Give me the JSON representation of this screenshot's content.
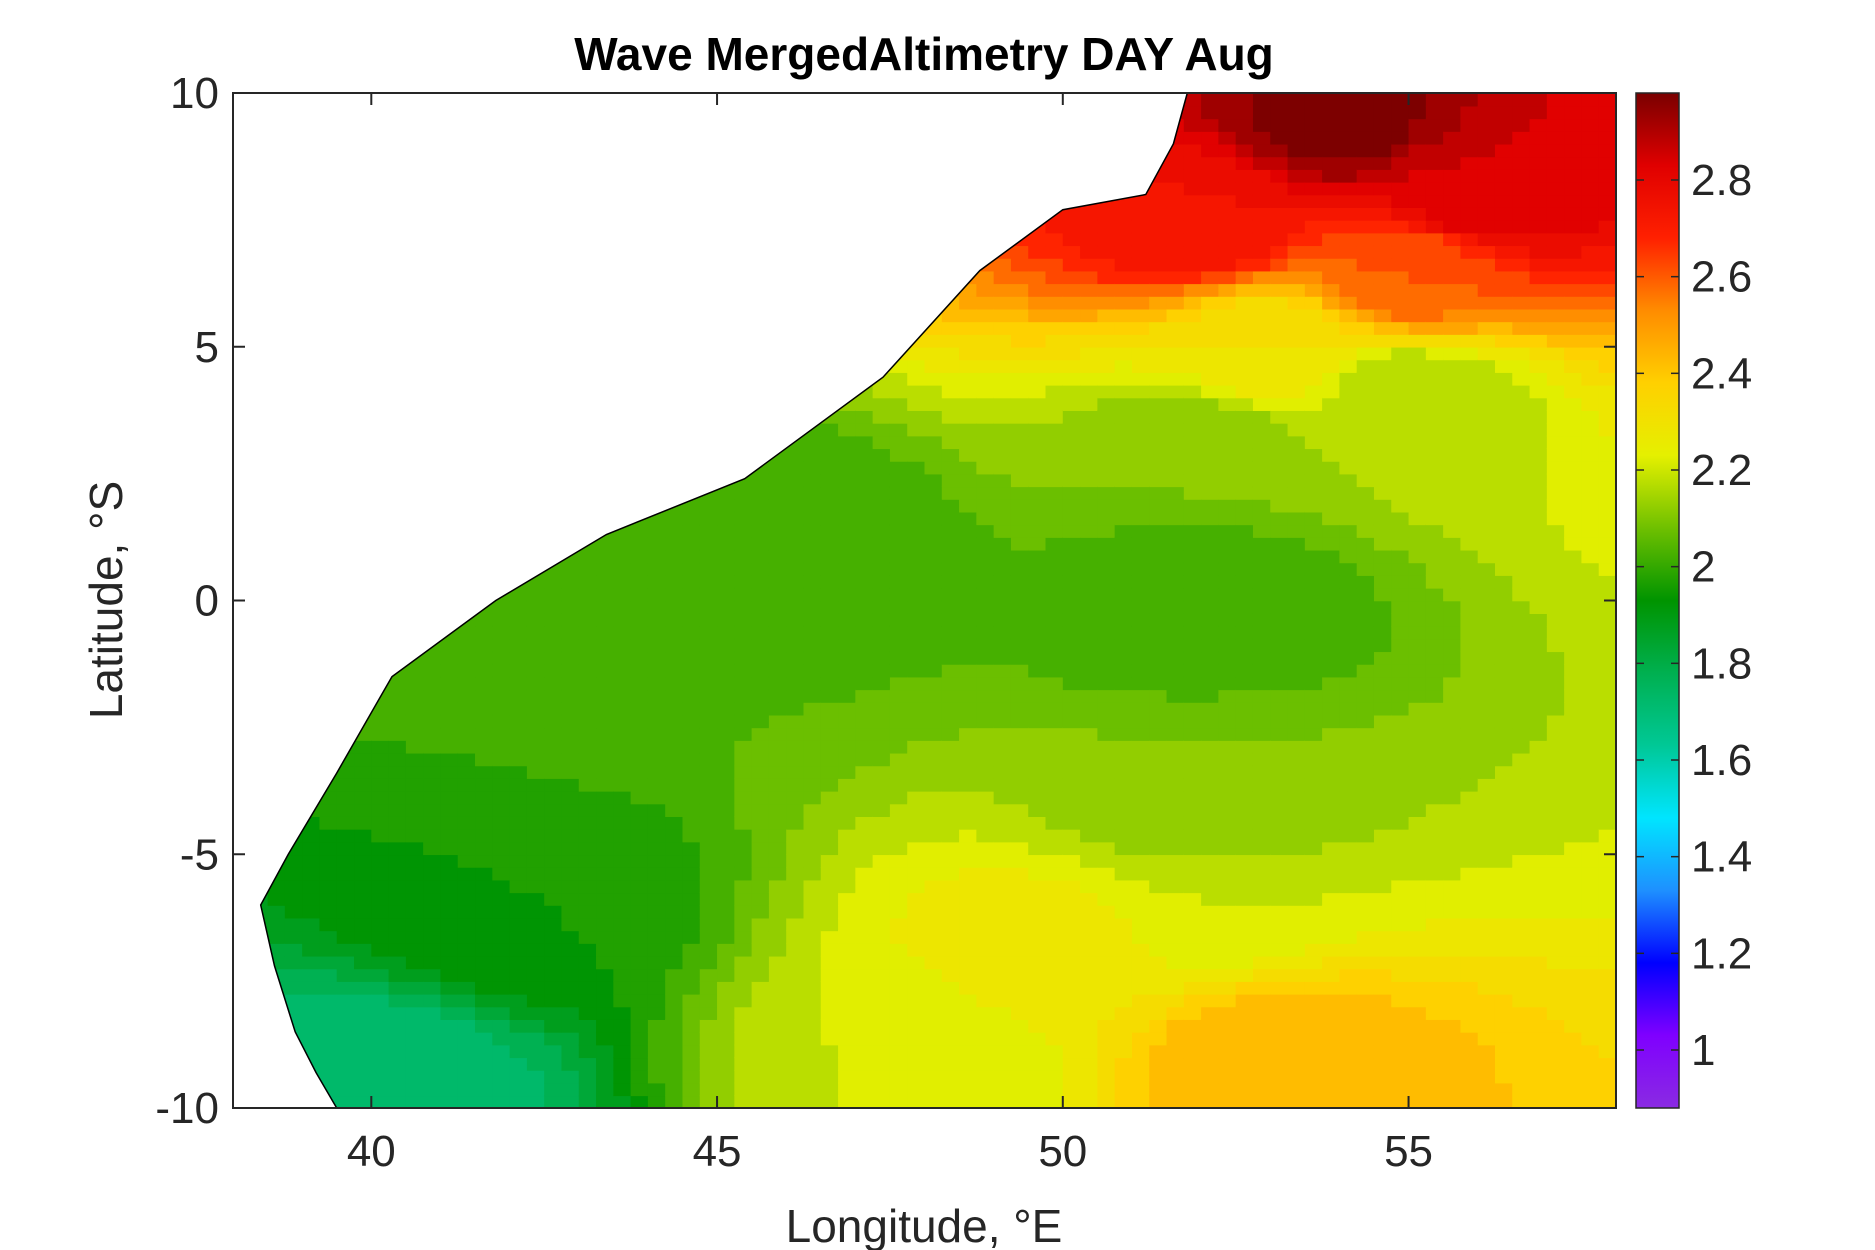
{
  "chart_data": {
    "type": "heatmap",
    "subtype": "filled-contour-map",
    "title": "Wave MergedAltimetry DAY Aug",
    "xlabel": "Longitude, °E",
    "ylabel": "Latitude, °S",
    "xlim": [
      38,
      58
    ],
    "ylim": [
      -10,
      10
    ],
    "xticks": [
      40,
      45,
      50,
      55
    ],
    "yticks": [
      10,
      5,
      0,
      -5,
      -10
    ],
    "colorbar": {
      "range": [
        0.88,
        2.98
      ],
      "ticks": [
        1,
        1.2,
        1.4,
        1.6,
        1.8,
        2,
        2.2,
        2.4,
        2.6,
        2.8
      ],
      "colormap": [
        "#8a2be2",
        "#7f00ff",
        "#0000ff",
        "#1e90ff",
        "#00e5ff",
        "#00c896",
        "#00b050",
        "#009400",
        "#6fc000",
        "#e5f000",
        "#ffd000",
        "#ff8c00",
        "#ff2000",
        "#e00000",
        "#7a0000"
      ]
    },
    "land_color": "#ffffff",
    "coast_points": [
      [
        51.8,
        10
      ],
      [
        51.6,
        9
      ],
      [
        51.2,
        8
      ],
      [
        50.0,
        7.7
      ],
      [
        48.8,
        6.5
      ],
      [
        47.4,
        4.4
      ],
      [
        45.4,
        2.4
      ],
      [
        43.4,
        1.3
      ],
      [
        41.8,
        0.0
      ],
      [
        40.3,
        -1.5
      ],
      [
        39.5,
        -3.4
      ],
      [
        38.8,
        -5.0
      ],
      [
        38.4,
        -6.0
      ],
      [
        38.6,
        -7.2
      ],
      [
        38.9,
        -8.5
      ],
      [
        39.2,
        -9.3
      ],
      [
        39.5,
        -10
      ]
    ],
    "field_samples": [
      {
        "lon": 54,
        "lat": 9.5,
        "value": 2.97
      },
      {
        "lon": 56,
        "lat": 8,
        "value": 2.85
      },
      {
        "lon": 52,
        "lat": 7.5,
        "value": 2.75
      },
      {
        "lon": 55,
        "lat": 6.5,
        "value": 2.6
      },
      {
        "lon": 53,
        "lat": 5,
        "value": 2.3
      },
      {
        "lon": 55,
        "lat": 4,
        "value": 2.15
      },
      {
        "lon": 52,
        "lat": 3,
        "value": 2.1
      },
      {
        "lon": 52,
        "lat": 0,
        "value": 2.0
      },
      {
        "lon": 46,
        "lat": 1,
        "value": 2.0
      },
      {
        "lon": 44,
        "lat": -1,
        "value": 2.05
      },
      {
        "lon": 52,
        "lat": -4,
        "value": 2.1
      },
      {
        "lon": 52,
        "lat": -6,
        "value": 2.2
      },
      {
        "lon": 50,
        "lat": -7,
        "value": 2.3
      },
      {
        "lon": 53,
        "lat": -9,
        "value": 2.45
      },
      {
        "lon": 48,
        "lat": -9,
        "value": 2.2
      },
      {
        "lon": 42,
        "lat": -6,
        "value": 1.95
      },
      {
        "lon": 40,
        "lat": -9.5,
        "value": 1.7
      }
    ]
  }
}
